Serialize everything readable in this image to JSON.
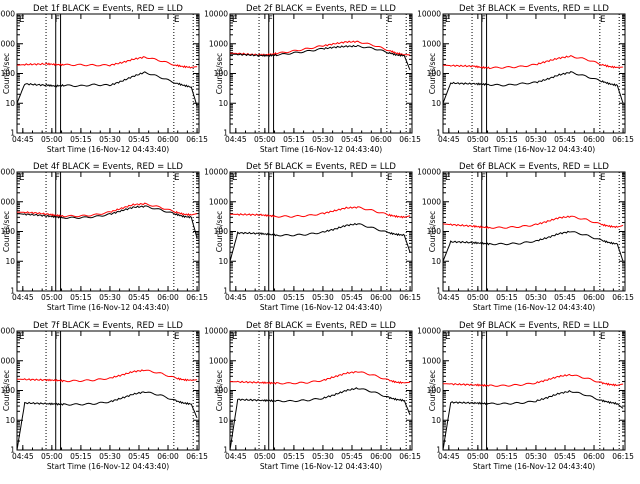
{
  "chart_data": [
    {
      "type": "line",
      "title": "Det 1f BLACK = Events, RED = LLD",
      "xlabel": "Start Time (16-Nov-12 04:43:40)",
      "ylabel": "Counts/sec",
      "x_ticks": [
        "04:45",
        "05:00",
        "05:15",
        "05:30",
        "05:45",
        "06:00",
        "06:15"
      ],
      "y_ticks": [
        "1",
        "10",
        "100",
        "1000",
        "10000"
      ],
      "y_scale": "log",
      "ylim": [
        1,
        10000
      ],
      "markers": [
        "E",
        "F",
        "E"
      ],
      "x": [
        -2,
        2,
        8,
        14,
        18,
        22,
        30,
        38,
        46,
        52,
        58,
        64,
        72,
        80,
        84,
        88,
        91
      ],
      "series": [
        {
          "name": "RED",
          "color": "#ff0000",
          "values": [
            190,
            200,
            205,
            210,
            200,
            195,
            195,
            190,
            190,
            230,
            300,
            360,
            270,
            190,
            170,
            160,
            170
          ]
        },
        {
          "name": "BLACK",
          "color": "#000000",
          "values": [
            10,
            45,
            42,
            40,
            38,
            40,
            38,
            42,
            40,
            55,
            80,
            110,
            75,
            48,
            40,
            35,
            8
          ]
        }
      ]
    },
    {
      "type": "line",
      "title": "Det 2f BLACK = Events, RED = LLD",
      "xlabel": "Start Time (16-Nov-12 04:43:40)",
      "ylabel": "Counts/sec",
      "x_ticks": [
        "04:45",
        "05:00",
        "05:15",
        "05:30",
        "05:45",
        "06:00",
        "06:15"
      ],
      "y_ticks": [
        "1",
        "10",
        "100",
        "1000",
        "10000"
      ],
      "y_scale": "log",
      "ylim": [
        1,
        10000
      ],
      "markers": [
        "E",
        "F",
        "E"
      ],
      "x": [
        -2,
        2,
        8,
        14,
        18,
        22,
        30,
        38,
        46,
        52,
        58,
        64,
        72,
        80,
        84,
        88,
        91
      ],
      "series": [
        {
          "name": "RED",
          "color": "#ff0000",
          "values": [
            480,
            470,
            440,
            420,
            430,
            470,
            560,
            680,
            850,
            1000,
            1150,
            1180,
            900,
            600,
            480,
            430,
            420
          ]
        },
        {
          "name": "BLACK",
          "color": "#000000",
          "values": [
            450,
            440,
            420,
            400,
            400,
            420,
            480,
            560,
            680,
            760,
            820,
            830,
            700,
            500,
            420,
            400,
            130
          ]
        }
      ]
    },
    {
      "type": "line",
      "title": "Det 3f BLACK = Events, RED = LLD",
      "xlabel": "Start Time (16-Nov-12 04:43:40)",
      "ylabel": "Counts/sec",
      "x_ticks": [
        "04:45",
        "05:00",
        "05:15",
        "05:30",
        "05:45",
        "06:00",
        "06:15"
      ],
      "y_ticks": [
        "1",
        "10",
        "100",
        "1000",
        "10000"
      ],
      "y_scale": "log",
      "ylim": [
        1,
        10000
      ],
      "markers": [
        "E",
        "F",
        "E"
      ],
      "x": [
        -2,
        2,
        8,
        14,
        18,
        22,
        30,
        38,
        46,
        52,
        58,
        64,
        72,
        80,
        84,
        88,
        91
      ],
      "series": [
        {
          "name": "RED",
          "color": "#ff0000",
          "values": [
            190,
            185,
            180,
            175,
            160,
            155,
            160,
            170,
            200,
            260,
            330,
            380,
            300,
            200,
            170,
            160,
            165
          ]
        },
        {
          "name": "BLACK",
          "color": "#000000",
          "values": [
            10,
            48,
            46,
            45,
            44,
            42,
            40,
            45,
            50,
            65,
            90,
            110,
            80,
            55,
            45,
            40,
            10
          ]
        }
      ]
    },
    {
      "type": "line",
      "title": "Det 4f BLACK = Events, RED = LLD",
      "xlabel": "Start Time (16-Nov-12 04:43:40)",
      "ylabel": "Counts/sec",
      "x_ticks": [
        "04:45",
        "05:00",
        "05:15",
        "05:30",
        "05:45",
        "06:00",
        "06:15"
      ],
      "y_ticks": [
        "1",
        "10",
        "100",
        "1000",
        "10000"
      ],
      "y_scale": "log",
      "ylim": [
        1,
        10000
      ],
      "markers": [
        "E",
        "F",
        "E"
      ],
      "x": [
        -2,
        2,
        8,
        14,
        18,
        22,
        30,
        38,
        46,
        52,
        58,
        64,
        72,
        80,
        84,
        88,
        91
      ],
      "series": [
        {
          "name": "RED",
          "color": "#ff0000",
          "values": [
            450,
            440,
            420,
            380,
            350,
            330,
            330,
            360,
            450,
            600,
            800,
            850,
            650,
            450,
            380,
            360,
            400
          ]
        },
        {
          "name": "BLACK",
          "color": "#000000",
          "values": [
            400,
            380,
            360,
            330,
            310,
            290,
            290,
            310,
            380,
            500,
            650,
            700,
            540,
            380,
            320,
            300,
            60
          ]
        }
      ]
    },
    {
      "type": "line",
      "title": "Det 5f BLACK = Events, RED = LLD",
      "xlabel": "Start Time (16-Nov-12 04:43:40)",
      "ylabel": "Counts/sec",
      "x_ticks": [
        "04:45",
        "05:00",
        "05:15",
        "05:30",
        "05:45",
        "06:00",
        "06:15"
      ],
      "y_ticks": [
        "1",
        "10",
        "100",
        "1000",
        "10000"
      ],
      "y_scale": "log",
      "ylim": [
        1,
        10000
      ],
      "markers": [
        "E",
        "F",
        "E"
      ],
      "x": [
        -2,
        2,
        8,
        14,
        18,
        22,
        30,
        38,
        46,
        52,
        58,
        64,
        72,
        80,
        84,
        88,
        91
      ],
      "series": [
        {
          "name": "RED",
          "color": "#ff0000",
          "values": [
            380,
            375,
            370,
            360,
            340,
            320,
            320,
            340,
            400,
            500,
            620,
            650,
            500,
            360,
            320,
            300,
            340
          ]
        },
        {
          "name": "BLACK",
          "color": "#000000",
          "values": [
            10,
            90,
            88,
            85,
            80,
            75,
            75,
            80,
            95,
            120,
            160,
            180,
            130,
            90,
            80,
            75,
            20
          ]
        }
      ]
    },
    {
      "type": "line",
      "title": "Det 6f BLACK = Events, RED = LLD",
      "xlabel": "Start Time (16-Nov-12 04:43:40)",
      "ylabel": "Counts/sec",
      "x_ticks": [
        "04:45",
        "05:00",
        "05:15",
        "05:30",
        "05:45",
        "06:00",
        "06:15"
      ],
      "y_ticks": [
        "1",
        "10",
        "100",
        "1000",
        "10000"
      ],
      "y_scale": "log",
      "ylim": [
        1,
        10000
      ],
      "markers": [
        "E",
        "F",
        "E"
      ],
      "x": [
        -2,
        2,
        8,
        14,
        18,
        22,
        30,
        38,
        46,
        52,
        58,
        64,
        72,
        80,
        84,
        88,
        91
      ],
      "series": [
        {
          "name": "RED",
          "color": "#ff0000",
          "values": [
            180,
            170,
            160,
            150,
            140,
            135,
            135,
            145,
            170,
            220,
            290,
            320,
            250,
            170,
            150,
            140,
            160
          ]
        },
        {
          "name": "BLACK",
          "color": "#000000",
          "values": [
            10,
            45,
            44,
            42,
            40,
            38,
            38,
            40,
            48,
            62,
            85,
            100,
            75,
            50,
            42,
            38,
            10
          ]
        }
      ]
    },
    {
      "type": "line",
      "title": "Det 7f BLACK = Events, RED = LLD",
      "xlabel": "Start Time (16-Nov-12 04:43:40)",
      "ylabel": "Counts/sec",
      "x_ticks": [
        "04:45",
        "05:00",
        "05:15",
        "05:30",
        "05:45",
        "06:00",
        "06:15"
      ],
      "y_ticks": [
        "1",
        "10",
        "100",
        "1000",
        "10000"
      ],
      "y_scale": "log",
      "ylim": [
        1,
        10000
      ],
      "markers": [
        "E",
        "F",
        "E"
      ],
      "x": [
        -2,
        2,
        8,
        14,
        18,
        22,
        30,
        38,
        46,
        52,
        58,
        64,
        72,
        80,
        84,
        88,
        91
      ],
      "series": [
        {
          "name": "RED",
          "color": "#ff0000",
          "values": [
            240,
            235,
            230,
            225,
            220,
            210,
            210,
            225,
            260,
            330,
            430,
            480,
            380,
            260,
            230,
            220,
            230
          ]
        },
        {
          "name": "BLACK",
          "color": "#000000",
          "values": [
            1,
            38,
            37,
            36,
            35,
            34,
            34,
            36,
            42,
            55,
            75,
            90,
            70,
            45,
            38,
            35,
            12
          ]
        }
      ]
    },
    {
      "type": "line",
      "title": "Det 8f BLACK = Events, RED = LLD",
      "xlabel": "Start Time (16-Nov-12 04:43:40)",
      "ylabel": "Counts/sec",
      "x_ticks": [
        "04:45",
        "05:00",
        "05:15",
        "05:30",
        "05:45",
        "06:00",
        "06:15"
      ],
      "y_ticks": [
        "1",
        "10",
        "100",
        "1000",
        "10000"
      ],
      "y_scale": "log",
      "ylim": [
        1,
        10000
      ],
      "markers": [
        "E",
        "F",
        "E"
      ],
      "x": [
        -2,
        2,
        8,
        14,
        18,
        22,
        30,
        38,
        46,
        52,
        58,
        64,
        72,
        80,
        84,
        88,
        91
      ],
      "series": [
        {
          "name": "RED",
          "color": "#ff0000",
          "values": [
            200,
            195,
            190,
            185,
            180,
            175,
            175,
            185,
            220,
            290,
            380,
            430,
            330,
            220,
            190,
            180,
            190
          ]
        },
        {
          "name": "BLACK",
          "color": "#000000",
          "values": [
            1,
            50,
            48,
            47,
            46,
            44,
            44,
            47,
            55,
            72,
            100,
            120,
            90,
            58,
            50,
            46,
            15
          ]
        }
      ]
    },
    {
      "type": "line",
      "title": "Det 9f BLACK = Events, RED = LLD",
      "xlabel": "Start Time (16-Nov-12 04:43:40)",
      "ylabel": "Counts/sec",
      "x_ticks": [
        "04:45",
        "05:00",
        "05:15",
        "05:30",
        "05:45",
        "06:00",
        "06:15"
      ],
      "y_ticks": [
        "1",
        "10",
        "100",
        "1000",
        "10000"
      ],
      "y_scale": "log",
      "ylim": [
        1,
        10000
      ],
      "markers": [
        "E",
        "F",
        "E"
      ],
      "x": [
        -2,
        2,
        8,
        14,
        18,
        22,
        30,
        38,
        46,
        52,
        58,
        64,
        72,
        80,
        84,
        88,
        91
      ],
      "series": [
        {
          "name": "RED",
          "color": "#ff0000",
          "values": [
            170,
            165,
            160,
            155,
            150,
            145,
            145,
            155,
            180,
            230,
            300,
            340,
            260,
            180,
            160,
            150,
            165
          ]
        },
        {
          "name": "BLACK",
          "color": "#000000",
          "values": [
            1,
            40,
            39,
            38,
            37,
            36,
            36,
            38,
            44,
            58,
            80,
            95,
            70,
            46,
            40,
            36,
            25
          ]
        }
      ]
    }
  ]
}
